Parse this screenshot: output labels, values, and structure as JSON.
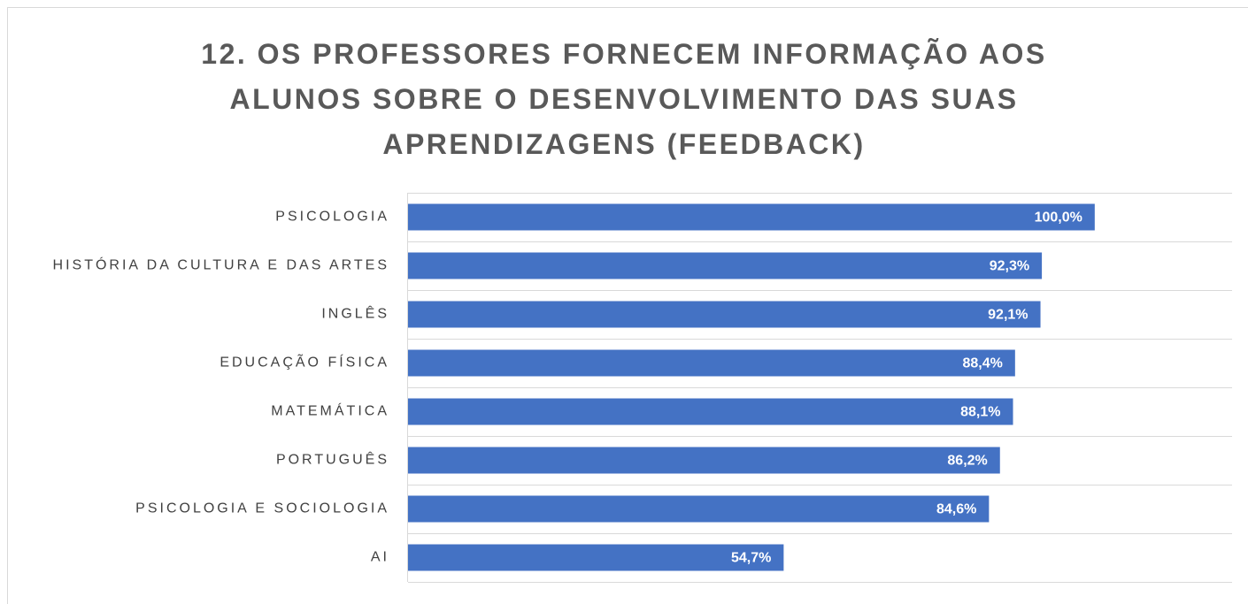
{
  "chart_data": {
    "type": "bar",
    "orientation": "horizontal",
    "title": "12. OS PROFESSORES FORNECEM INFORMAÇÃO AOS ALUNOS SOBRE O DESENVOLVIMENTO DAS SUAS APRENDIZAGENS (FEEDBACK)",
    "categories": [
      "PSICOLOGIA",
      "HISTÓRIA DA CULTURA E DAS ARTES",
      "INGLÊS",
      "EDUCAÇÃO FÍSICA",
      "MATEMÁTICA",
      "PORTUGUÊS",
      "PSICOLOGIA E SOCIOLOGIA",
      "AI"
    ],
    "values": [
      100.0,
      92.3,
      92.1,
      88.4,
      88.1,
      86.2,
      84.6,
      54.7
    ],
    "value_labels": [
      "100,0%",
      "92,3%",
      "92,1%",
      "88,4%",
      "88,1%",
      "86,2%",
      "84,6%",
      "54,7%"
    ],
    "color": "#4472c4",
    "xlim": [
      0,
      120
    ]
  }
}
